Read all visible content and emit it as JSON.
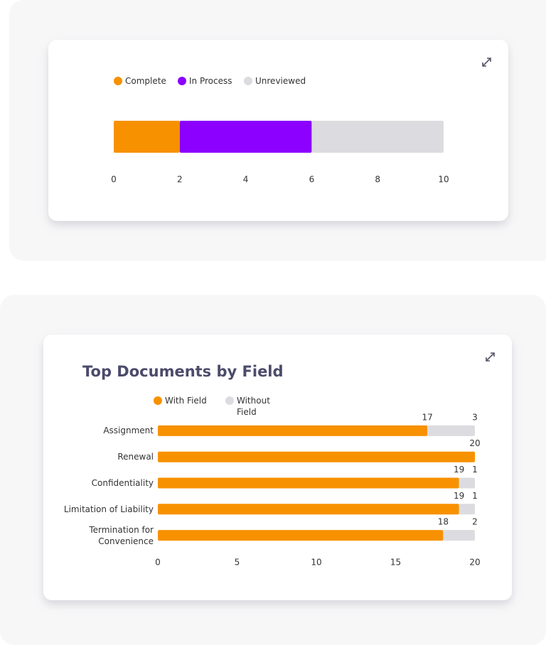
{
  "chart_data": [
    {
      "type": "bar",
      "orientation": "horizontal",
      "stacked": true,
      "categories": [
        null
      ],
      "series": [
        {
          "name": "Complete",
          "color": "#f79100",
          "values": [
            2
          ]
        },
        {
          "name": "In Process",
          "color": "#8b00ff",
          "values": [
            4
          ]
        },
        {
          "name": "Unreviewed",
          "color": "#dcdce0",
          "values": [
            4
          ]
        }
      ],
      "xlim": [
        0,
        10
      ],
      "xticks": [
        0,
        2,
        4,
        6,
        8,
        10
      ],
      "legend": "top-left",
      "data_labels": false
    },
    {
      "type": "bar",
      "orientation": "horizontal",
      "stacked": true,
      "title": "Top Documents by Field",
      "categories": [
        "Assignment",
        "Renewal",
        "Confidentiality",
        "Limitation of Liability",
        "Termination for Convenience"
      ],
      "series": [
        {
          "name": "With Field",
          "color": "#f79100",
          "values": [
            17,
            20,
            19,
            19,
            18
          ]
        },
        {
          "name": "Without Field",
          "color": "#dcdce0",
          "values": [
            3,
            0,
            1,
            1,
            2
          ]
        }
      ],
      "xlim": [
        0,
        20
      ],
      "xticks": [
        0,
        5,
        10,
        15,
        20
      ],
      "legend": "top-left",
      "data_labels": true
    }
  ]
}
